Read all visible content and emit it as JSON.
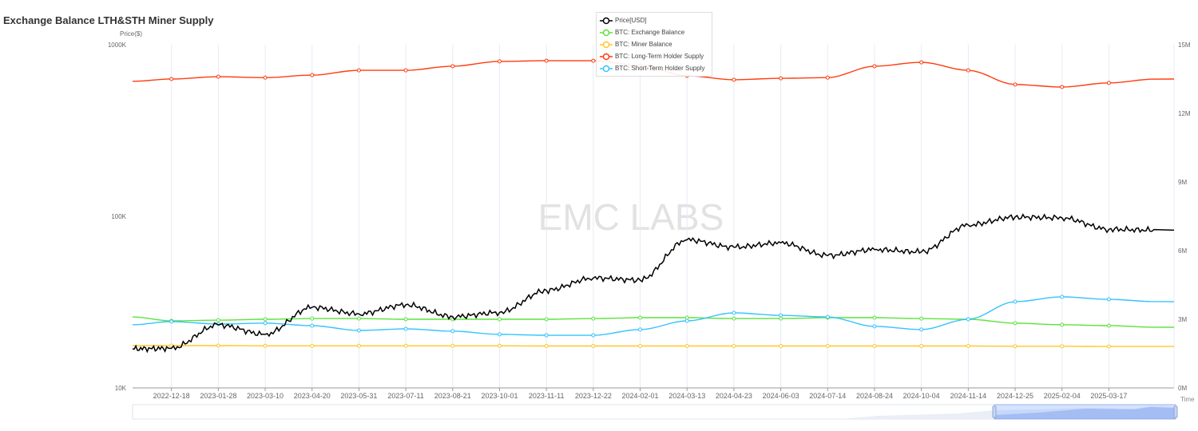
{
  "title": "Exchange Balance LTH&STH Miner Supply",
  "watermark": "EMC LABS",
  "chart_data": {
    "type": "line",
    "title": "Exchange Balance LTH&STH Miner Supply",
    "left_axis": {
      "label": "Price($)",
      "scale": "log",
      "range": [
        10000,
        1000000
      ],
      "ticks": [
        "10K",
        "100K",
        "1000K"
      ]
    },
    "right_axis": {
      "label": "",
      "scale": "linear",
      "range": [
        0,
        15
      ],
      "unit": "M",
      "ticks": [
        "0M",
        "3M",
        "6M",
        "9M",
        "12M",
        "15M"
      ]
    },
    "xlabel": "Time",
    "x_ticks": [
      "2022-12-18",
      "2023-01-28",
      "2023-03-10",
      "2023-04-20",
      "2023-05-31",
      "2023-07-11",
      "2023-08-21",
      "2023-10-01",
      "2023-11-11",
      "2023-12-22",
      "2024-02-01",
      "2024-03-13",
      "2024-04-23",
      "2024-06-03",
      "2024-07-14",
      "2024-08-24",
      "2024-10-04",
      "2024-11-14",
      "2024-12-25",
      "2025-02-04",
      "2025-03-17"
    ],
    "x_days_from_first_tick": [
      -34,
      0,
      41,
      82,
      123,
      164,
      205,
      246,
      287,
      328,
      369,
      410,
      451,
      492,
      533,
      574,
      615,
      656,
      697,
      738,
      779,
      820,
      861,
      877
    ],
    "x_range_days": [
      -34,
      877
    ],
    "grid": "vertical",
    "legend_position": "top-center",
    "series": [
      {
        "name": "Price[USD]",
        "axis": "left",
        "color": "#000000",
        "values": [
          16900,
          17000,
          23300,
          20500,
          29500,
          27000,
          30500,
          26000,
          27500,
          37000,
          43700,
          42500,
          73000,
          66000,
          70000,
          59000,
          64000,
          62000,
          89000,
          99000,
          98000,
          84000,
          83000
        ]
      },
      {
        "name": "BTC: Exchange Balance",
        "axis": "right",
        "color": "#5ce33c",
        "values": [
          3.1,
          2.93,
          2.96,
          3.0,
          3.03,
          3.03,
          3.0,
          3.0,
          3.0,
          3.0,
          3.03,
          3.07,
          3.07,
          3.03,
          3.03,
          3.07,
          3.07,
          3.03,
          3.0,
          2.83,
          2.76,
          2.72,
          2.65
        ]
      },
      {
        "name": "BTC: Miner Balance",
        "axis": "right",
        "color": "#ffc629",
        "values": [
          1.85,
          1.85,
          1.85,
          1.84,
          1.84,
          1.84,
          1.84,
          1.84,
          1.84,
          1.83,
          1.83,
          1.83,
          1.83,
          1.83,
          1.83,
          1.83,
          1.83,
          1.83,
          1.83,
          1.82,
          1.82,
          1.81,
          1.81
        ]
      },
      {
        "name": "BTC: Long-Term Holder Supply",
        "axis": "right",
        "color": "#ff3c0f",
        "values": [
          13.4,
          13.5,
          13.6,
          13.56,
          13.67,
          13.88,
          13.88,
          14.06,
          14.27,
          14.3,
          14.3,
          14.09,
          13.64,
          13.47,
          13.53,
          13.56,
          14.06,
          14.23,
          13.88,
          13.26,
          13.15,
          13.33,
          13.5
        ]
      },
      {
        "name": "BTC: Short-Term Holder Supply",
        "axis": "right",
        "color": "#35c3ff",
        "values": [
          2.76,
          2.9,
          2.79,
          2.83,
          2.72,
          2.51,
          2.58,
          2.48,
          2.34,
          2.3,
          2.3,
          2.55,
          2.93,
          3.28,
          3.17,
          3.1,
          2.69,
          2.55,
          3.0,
          3.77,
          3.98,
          3.87,
          3.77
        ]
      }
    ]
  }
}
